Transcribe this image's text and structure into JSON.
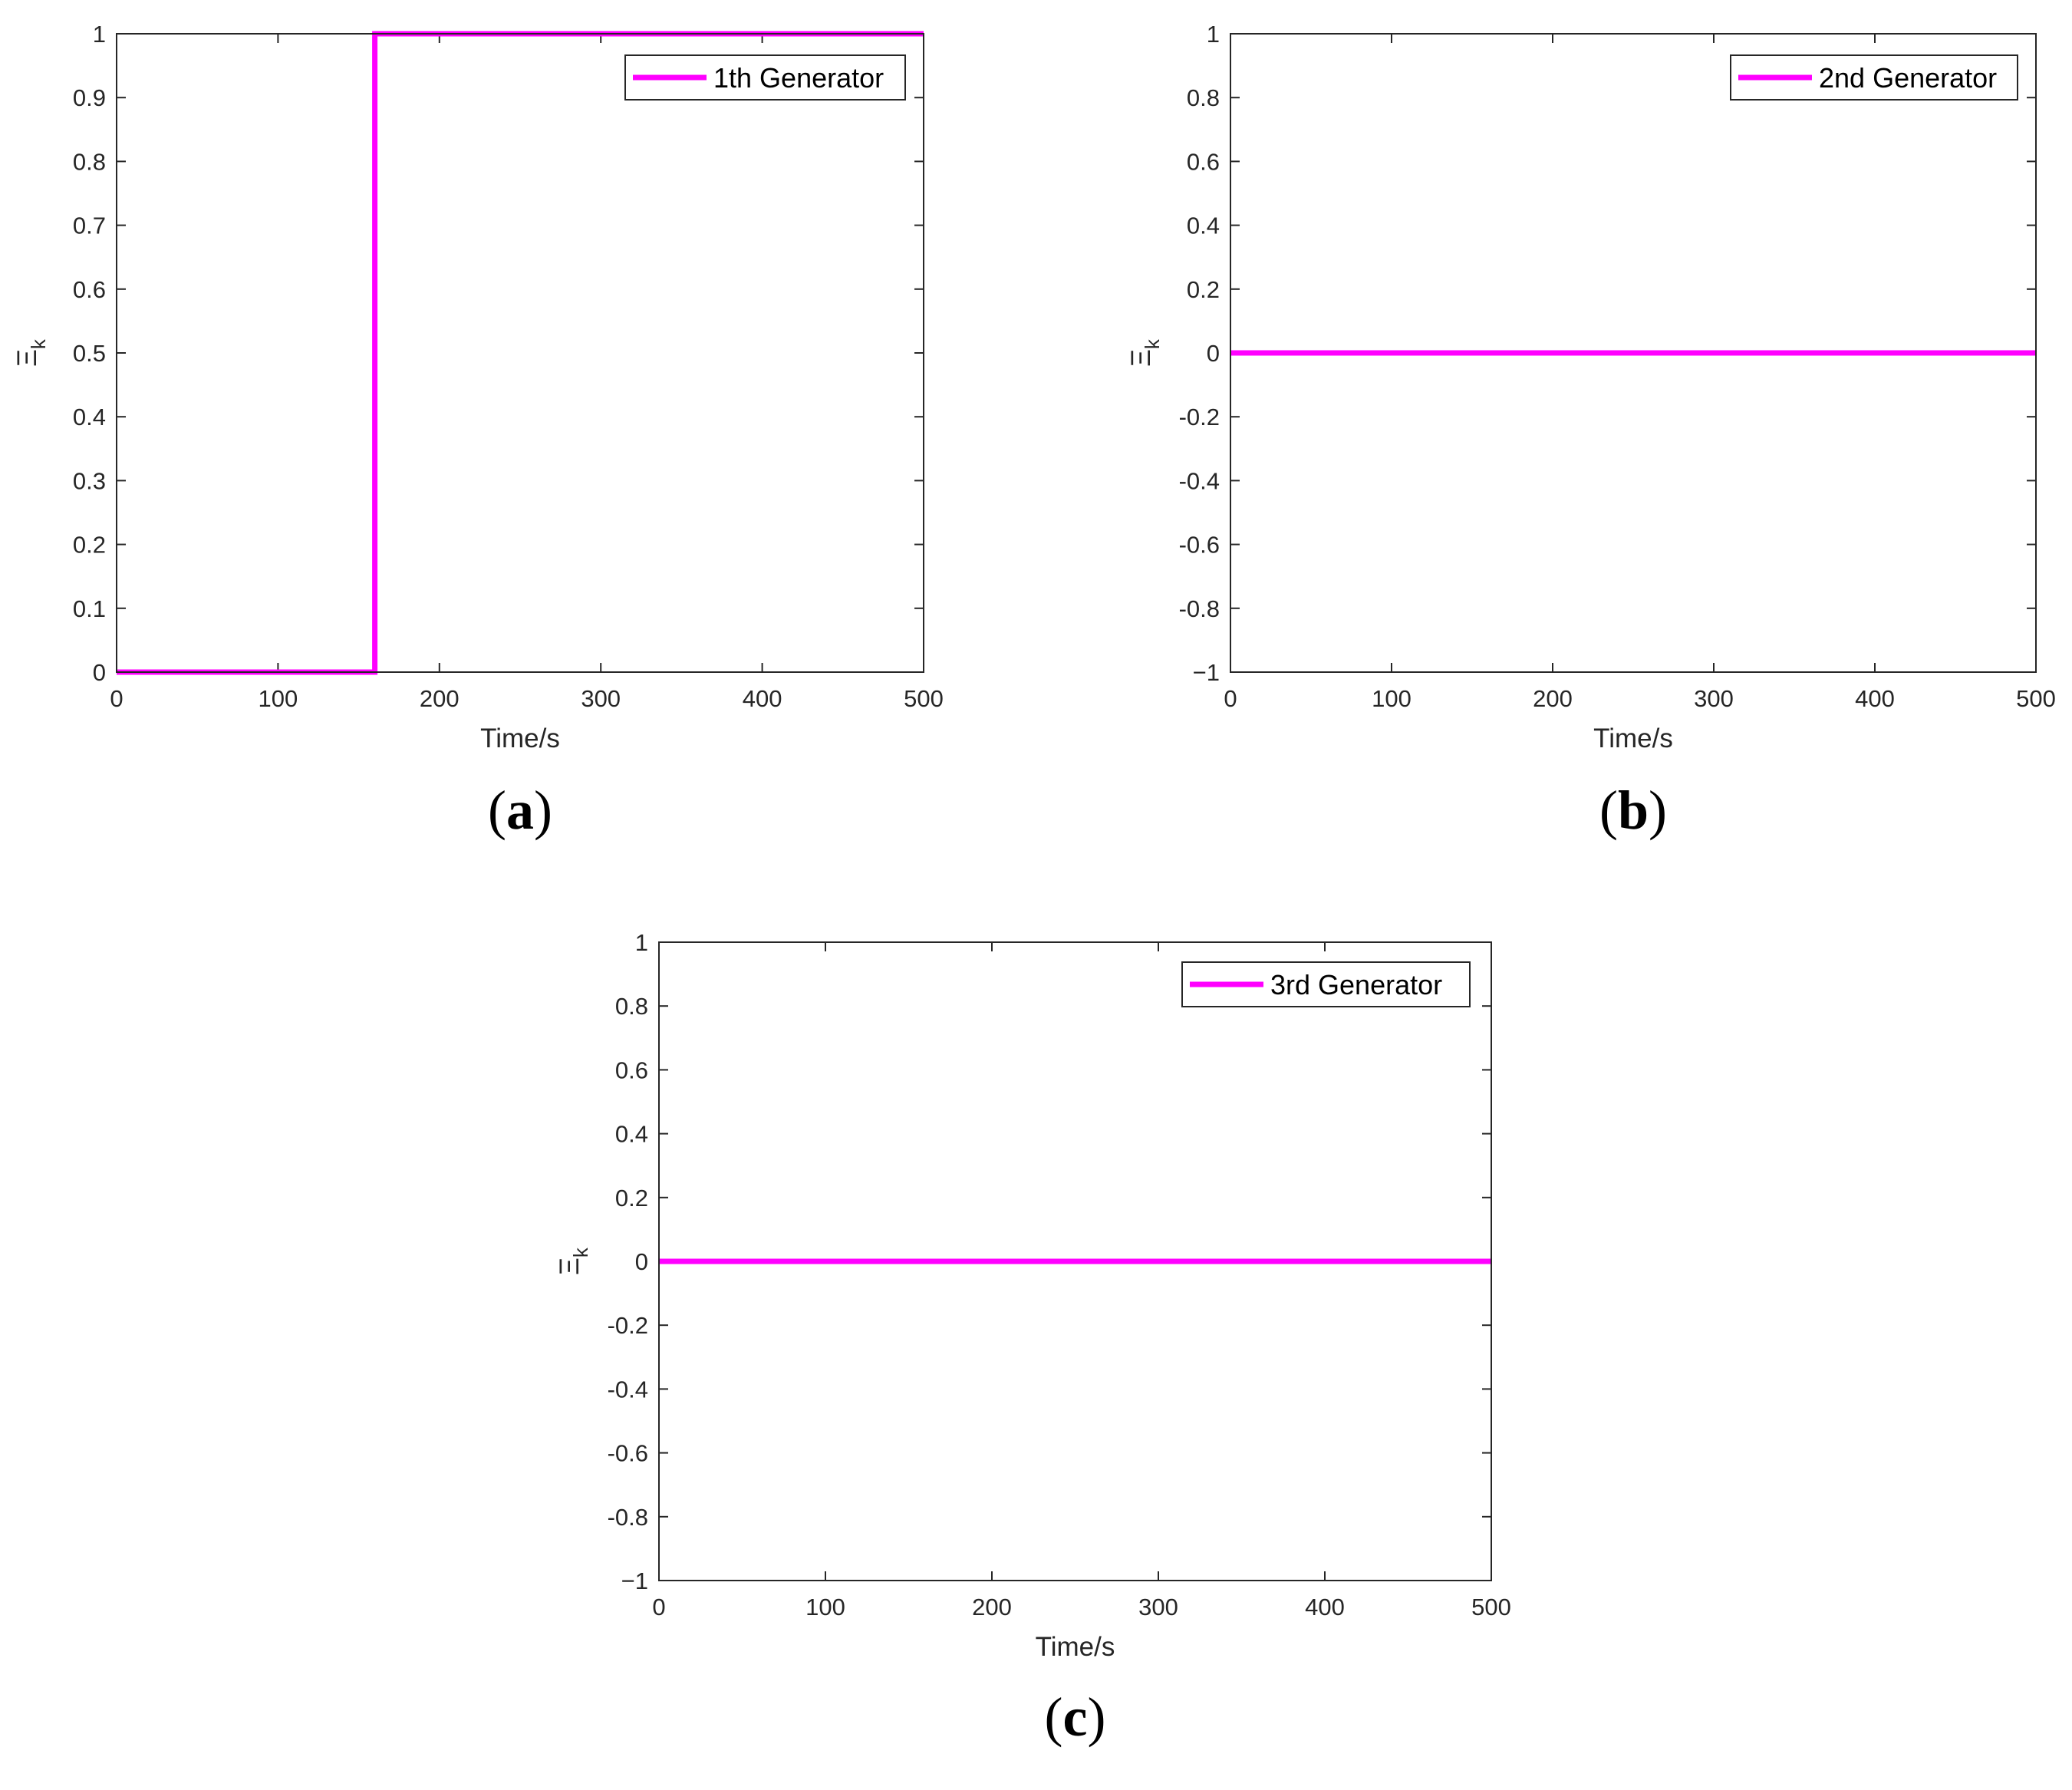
{
  "chart_data": [
    {
      "panel": "(a)",
      "panel_letter": "a",
      "type": "line",
      "xlabel": "Time/s",
      "ylabel": "Ξ",
      "ylabel_sub": "k",
      "xlim": [
        0,
        500
      ],
      "ylim": [
        0,
        1
      ],
      "xticks": [
        "0",
        "100",
        "200",
        "300",
        "400",
        "500"
      ],
      "yticks": [
        "0",
        "0.1",
        "0.2",
        "0.3",
        "0.4",
        "0.5",
        "0.6",
        "0.7",
        "0.8",
        "0.9",
        "1"
      ],
      "grid": false,
      "legend_position": "top-right",
      "series": [
        {
          "name": "1th Generator",
          "color": "#ff00ff",
          "x": [
            0,
            160,
            160,
            500
          ],
          "y": [
            0,
            0,
            1,
            1
          ]
        }
      ]
    },
    {
      "panel": "(b)",
      "panel_letter": "b",
      "type": "line",
      "xlabel": "Time/s",
      "ylabel": "Ξ",
      "ylabel_sub": "k",
      "xlim": [
        0,
        500
      ],
      "ylim": [
        -1,
        1
      ],
      "xticks": [
        "0",
        "100",
        "200",
        "300",
        "400",
        "500"
      ],
      "yticks": [
        "−1",
        "-0.8",
        "-0.6",
        "-0.4",
        "-0.2",
        "0",
        "0.2",
        "0.4",
        "0.6",
        "0.8",
        "1"
      ],
      "grid": false,
      "legend_position": "top-right",
      "series": [
        {
          "name": "2nd Generator",
          "color": "#ff00ff",
          "x": [
            0,
            500
          ],
          "y": [
            0,
            0
          ]
        }
      ]
    },
    {
      "panel": "(c)",
      "panel_letter": "c",
      "type": "line",
      "xlabel": "Time/s",
      "ylabel": "Ξ",
      "ylabel_sub": "k",
      "xlim": [
        0,
        500
      ],
      "ylim": [
        -1,
        1
      ],
      "xticks": [
        "0",
        "100",
        "200",
        "300",
        "400",
        "500"
      ],
      "yticks": [
        "−1",
        "-0.8",
        "-0.6",
        "-0.4",
        "-0.2",
        "0",
        "0.2",
        "0.4",
        "0.6",
        "0.8",
        "1"
      ],
      "grid": false,
      "legend_position": "top-right",
      "series": [
        {
          "name": "3rd Generator",
          "color": "#ff00ff",
          "x": [
            0,
            500
          ],
          "y": [
            0,
            0
          ]
        }
      ]
    }
  ]
}
